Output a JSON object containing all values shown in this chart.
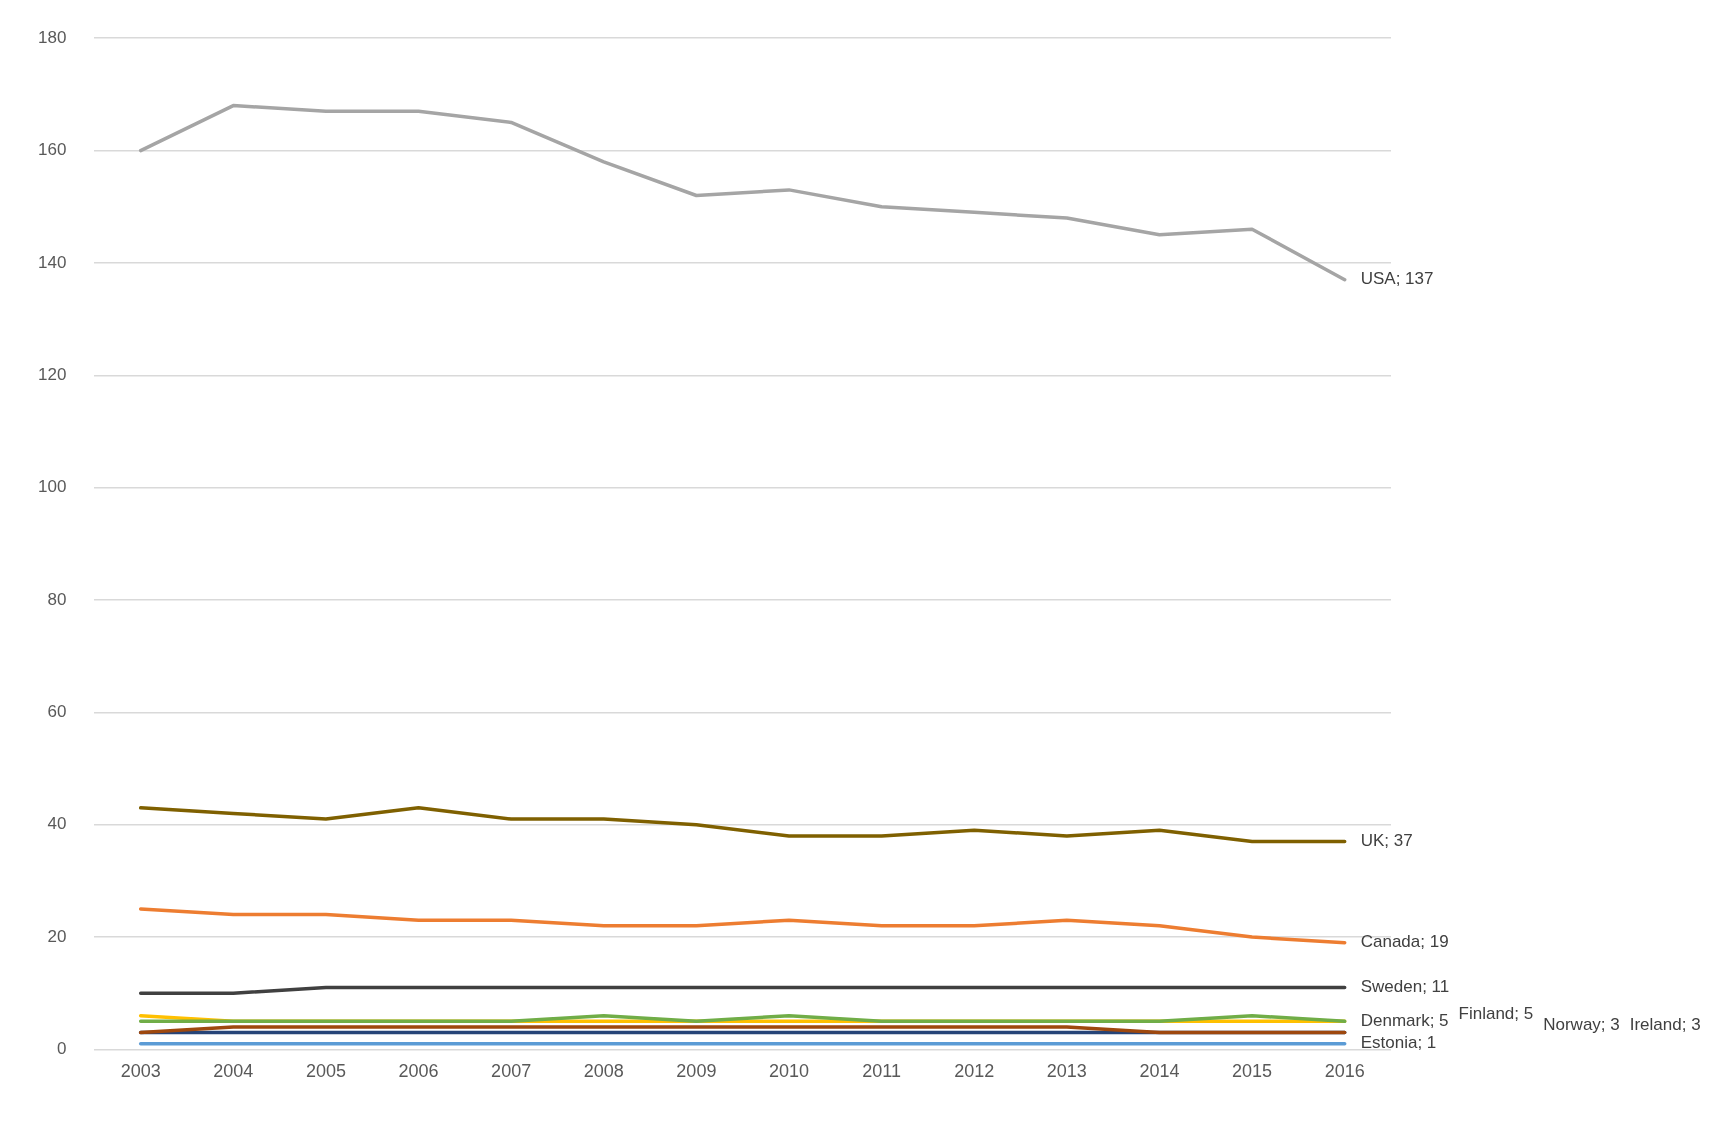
{
  "chart_data": {
    "type": "line",
    "categories": [
      "2003",
      "2004",
      "2005",
      "2006",
      "2007",
      "2008",
      "2009",
      "2010",
      "2011",
      "2012",
      "2013",
      "2014",
      "2015",
      "2016"
    ],
    "series": [
      {
        "color": "#a5a5a5",
        "values": [
          160,
          168,
          167,
          167,
          165,
          158,
          152,
          153,
          150,
          149,
          148,
          145,
          146,
          137
        ]
      },
      {
        "color": "#7f6000",
        "values": [
          43,
          42,
          41,
          43,
          41,
          41,
          40,
          38,
          38,
          39,
          38,
          39,
          37,
          37
        ]
      },
      {
        "color": "#ed7d31",
        "values": [
          25,
          24,
          24,
          23,
          23,
          22,
          22,
          23,
          22,
          22,
          23,
          22,
          20,
          19
        ]
      },
      {
        "color": "#404040",
        "values": [
          10,
          10,
          11,
          11,
          11,
          11,
          11,
          11,
          11,
          11,
          11,
          11,
          11,
          11
        ]
      },
      {
        "color": "#ffc000",
        "values": [
          6,
          5,
          5,
          5,
          5,
          5,
          5,
          5,
          5,
          5,
          5,
          5,
          5,
          5
        ]
      },
      {
        "color": "#70ad47",
        "values": [
          5,
          5,
          5,
          5,
          5,
          6,
          5,
          6,
          5,
          5,
          5,
          5,
          6,
          5
        ]
      },
      {
        "color": "#264478",
        "values": [
          3,
          3,
          3,
          3,
          3,
          3,
          3,
          3,
          3,
          3,
          3,
          3,
          3,
          3
        ]
      },
      {
        "color": "#9e480e",
        "values": [
          3,
          4,
          4,
          4,
          4,
          4,
          4,
          4,
          4,
          4,
          4,
          3,
          3,
          3
        ]
      },
      {
        "color": "#5b9bd5",
        "values": [
          1,
          1,
          1,
          1,
          1,
          1,
          1,
          1,
          1,
          1,
          1,
          1,
          1,
          1
        ]
      }
    ],
    "ylim": [
      0,
      180
    ],
    "yticks": [
      0,
      20,
      40,
      60,
      80,
      100,
      120,
      140,
      160,
      180
    ],
    "grid": "y",
    "legend": false,
    "marker": "none",
    "line_style": "solid",
    "annotations": [
      {
        "text": "USA; 137",
        "x": "2016",
        "y": 137
      },
      {
        "text": "UK; 37",
        "x": "2016",
        "y": 37
      },
      {
        "text": "Canada; 19",
        "x": "2016",
        "y": 19
      },
      {
        "text": "Sweden; 11",
        "x": "2016",
        "y": 11
      },
      {
        "text": "Denmark; 5",
        "x": "2016",
        "y": 5
      },
      "Finland; 5",
      "Norway; 3",
      "Ireland; 3",
      {
        "text": "Estonia; 1",
        "x": "2016",
        "y": 1
      }
    ]
  }
}
